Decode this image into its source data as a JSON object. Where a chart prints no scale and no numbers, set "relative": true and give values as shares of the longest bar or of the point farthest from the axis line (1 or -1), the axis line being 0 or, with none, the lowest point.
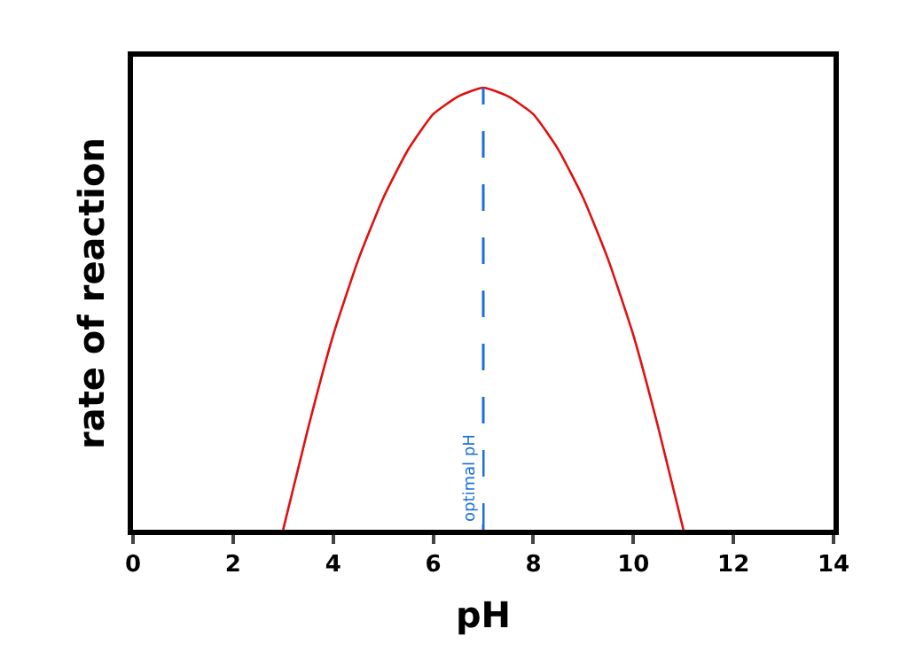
{
  "chart_data": {
    "type": "line",
    "xlabel": "pH",
    "ylabel": "rate of reaction",
    "relative": true,
    "x": [
      3,
      3.5,
      4,
      4.5,
      5,
      5.5,
      6,
      6.5,
      7,
      7.5,
      8,
      8.5,
      9,
      9.5,
      10,
      10.5,
      11
    ],
    "series": [
      {
        "color": "#e01010",
        "values": [
          0,
          0.23,
          0.44,
          0.61,
          0.75,
          0.86,
          0.94,
          0.98,
          1,
          0.98,
          0.94,
          0.86,
          0.75,
          0.61,
          0.44,
          0.23,
          0
        ]
      }
    ],
    "xlim": [
      0,
      14
    ],
    "xticks": [
      0,
      2,
      4,
      6,
      8,
      10,
      12,
      14
    ],
    "ref_lines": [
      {
        "axis": "x",
        "value": 7,
        "label": "optimal pH",
        "color": "#1a6fdc",
        "line_style": "dashed"
      }
    ],
    "marker": "none",
    "line_style": "solid"
  }
}
